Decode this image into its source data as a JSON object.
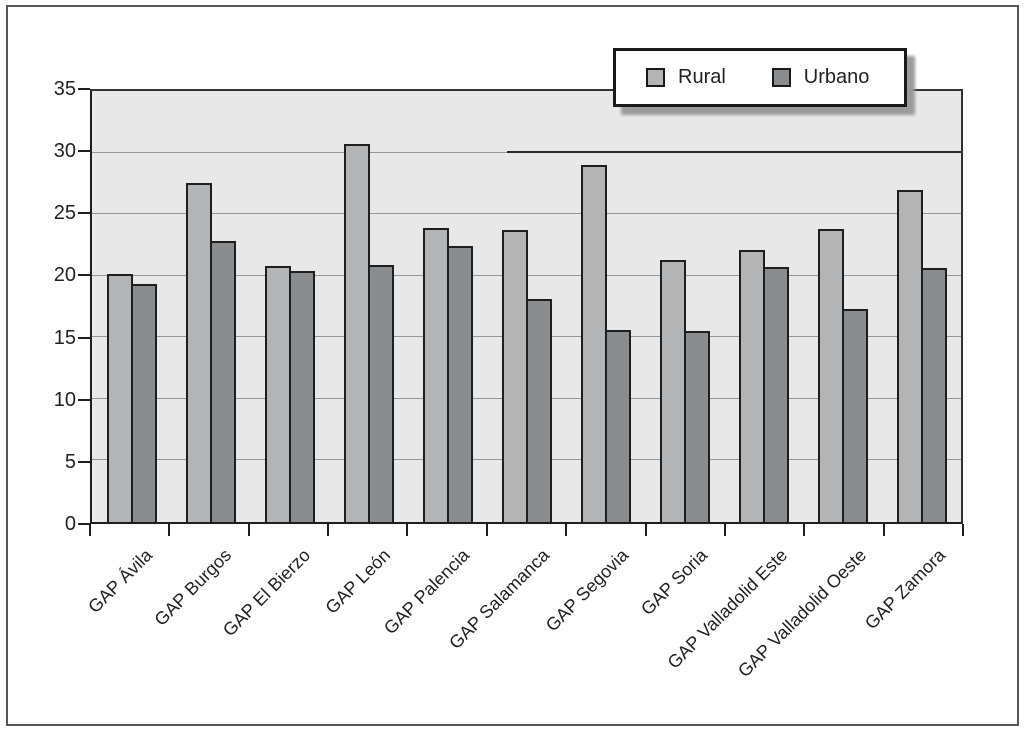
{
  "chart_data": {
    "type": "bar",
    "title": "",
    "xlabel": "",
    "ylabel": "",
    "categories": [
      "GAP Ávila",
      "GAP Burgos",
      "GAP El Bierzo",
      "GAP León",
      "GAP Palencia",
      "GAP Salamanca",
      "GAP Segovia",
      "GAP Soria",
      "GAP Valladolid Este",
      "GAP Valladolid Oeste",
      "GAP Zamora"
    ],
    "series": [
      {
        "name": "Rural",
        "color": "#b2b4b6",
        "values": [
          20.1,
          27.5,
          20.8,
          30.7,
          23.9,
          23.7,
          29.0,
          21.3,
          22.1,
          23.8,
          27.0
        ]
      },
      {
        "name": "Urbano",
        "color": "#8a8d90",
        "values": [
          19.3,
          22.8,
          20.4,
          20.9,
          22.4,
          18.1,
          15.6,
          15.5,
          20.7,
          17.3,
          20.6
        ]
      }
    ],
    "ylim": [
      0,
      35
    ],
    "yticks": [
      0,
      5,
      10,
      15,
      20,
      25,
      30,
      35
    ],
    "grid": true,
    "legend_position": "top-right",
    "colors": {
      "plot_background": "#e8e8e9",
      "gridline": "#949698",
      "bar_border": "#1e1e1e",
      "axis": "#1e1e1e",
      "text": "#231f20"
    }
  }
}
